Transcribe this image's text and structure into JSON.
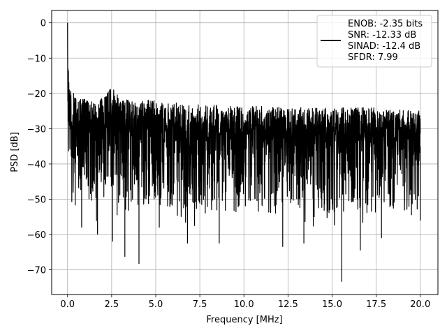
{
  "chart_data": {
    "type": "line",
    "xlabel": "Frequency [MHz]",
    "ylabel": "PSD [dB]",
    "xlim": [
      -0.9,
      21.0
    ],
    "ylim": [
      -77,
      3.5
    ],
    "xticks": [
      0.0,
      2.5,
      5.0,
      7.5,
      10.0,
      12.5,
      15.0,
      17.5,
      20.0
    ],
    "xtick_labels": [
      "0.0",
      "2.5",
      "5.0",
      "7.5",
      "10.0",
      "12.5",
      "15.0",
      "17.5",
      "20.0"
    ],
    "yticks": [
      0,
      -10,
      -20,
      -30,
      -40,
      -50,
      -60,
      -70
    ],
    "ytick_labels": [
      "0",
      "−10",
      "−20",
      "−30",
      "−40",
      "−50",
      "−60",
      "−70"
    ],
    "grid": true,
    "legend_position": "top-right",
    "legend_lines": [
      "ENOB: -2.35 bits",
      "SNR: -12.33 dB",
      "SINAD: -12.4 dB",
      "SFDR: 7.99"
    ],
    "series": [
      {
        "color": "#000000",
        "x_range": [
          0.0,
          20.0
        ],
        "peak": {
          "x": 0.0,
          "y": 0.0
        },
        "envelope_max": [
          [
            0.0,
            0.0
          ],
          [
            0.05,
            -12.0
          ],
          [
            0.1,
            -16.0
          ],
          [
            0.2,
            -19.0
          ],
          [
            0.5,
            -21.0
          ],
          [
            1.0,
            -21.5
          ],
          [
            2.0,
            -21.5
          ],
          [
            2.5,
            -17.9
          ],
          [
            3.0,
            -21.5
          ],
          [
            5.0,
            -22.0
          ],
          [
            7.5,
            -23.0
          ],
          [
            10.0,
            -23.5
          ],
          [
            12.5,
            -24.0
          ],
          [
            15.0,
            -24.0
          ],
          [
            17.5,
            -24.0
          ],
          [
            20.0,
            -25.0
          ]
        ],
        "notable_dips": [
          [
            0.8,
            -58.0
          ],
          [
            1.7,
            -60.0
          ],
          [
            2.55,
            -62.0
          ],
          [
            3.25,
            -66.3
          ],
          [
            4.05,
            -68.3
          ],
          [
            5.2,
            -58.0
          ],
          [
            6.8,
            -62.5
          ],
          [
            8.6,
            -62.5
          ],
          [
            12.2,
            -63.5
          ],
          [
            13.4,
            -62.5
          ],
          [
            15.55,
            -73.4
          ],
          [
            16.6,
            -64.5
          ],
          [
            17.8,
            -61.0
          ],
          [
            20.0,
            -56.0
          ]
        ]
      }
    ]
  }
}
